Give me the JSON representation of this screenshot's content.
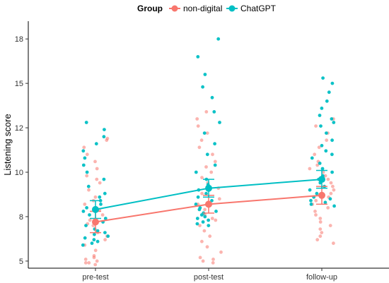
{
  "chart_data": {
    "type": "scatter",
    "title": "",
    "xlabel": "",
    "ylabel": "Listening score",
    "categories": [
      "pre-test",
      "post-test",
      "follow-up"
    ],
    "ylim": [
      4.6,
      18.5
    ],
    "yticks": [
      {
        "value": 5,
        "label": "5"
      },
      {
        "value": 7.5,
        "label": "8"
      },
      {
        "value": 10,
        "label": "10"
      },
      {
        "value": 12.5,
        "label": "12"
      },
      {
        "value": 15,
        "label": "15"
      },
      {
        "value": 17.5,
        "label": "18"
      }
    ],
    "grid": false,
    "legend": {
      "title": "Group",
      "position": "top"
    },
    "series": [
      {
        "name": "non-digital",
        "color": "#F8766D",
        "means": [
          7.2,
          8.2,
          8.7
        ],
        "ci_low": [
          6.6,
          7.7,
          8.2
        ],
        "ci_high": [
          7.8,
          8.7,
          9.2
        ],
        "points": [
          [
            4.8,
            5.0,
            5.1,
            4.9,
            5.3,
            5.6,
            5.9,
            6.2,
            6.6,
            7.0,
            7.3,
            7.6,
            7.9,
            8.2,
            8.6,
            9.0,
            9.4,
            9.8,
            10.2,
            10.6,
            11.0,
            11.4,
            11.8,
            11.9,
            4.9,
            5.2,
            6.4,
            7.1,
            8.4,
            9.6
          ],
          [
            4.9,
            5.0,
            5.2,
            5.5,
            5.8,
            6.1,
            6.4,
            6.7,
            7.0,
            7.3,
            7.6,
            7.9,
            8.2,
            8.5,
            8.8,
            9.1,
            9.4,
            9.7,
            10.0,
            10.3,
            10.6,
            11.0,
            11.4,
            11.8,
            12.2,
            12.6,
            13.0,
            13.4,
            5.1,
            7.4
          ],
          [
            6.0,
            6.2,
            6.4,
            6.6,
            6.8,
            7.0,
            7.2,
            7.4,
            7.6,
            7.8,
            8.0,
            8.2,
            8.4,
            8.6,
            8.8,
            9.0,
            9.2,
            9.4,
            9.6,
            9.8,
            10.0,
            10.2,
            10.4,
            10.6,
            11.0,
            11.4,
            11.8,
            12.2,
            12.6,
            13.0
          ]
        ]
      },
      {
        "name": "ChatGPT",
        "color": "#00BFC4",
        "means": [
          7.9,
          9.1,
          9.6
        ],
        "ci_low": [
          7.4,
          8.6,
          9.1
        ],
        "ci_high": [
          8.4,
          9.6,
          10.1
        ],
        "points": [
          [
            5.9,
            6.0,
            6.1,
            6.2,
            6.3,
            6.4,
            6.5,
            6.6,
            6.7,
            6.8,
            7.0,
            7.2,
            7.4,
            7.6,
            7.8,
            8.0,
            8.2,
            8.4,
            8.6,
            8.8,
            9.2,
            9.6,
            10.0,
            10.4,
            10.8,
            11.2,
            11.6,
            12.0,
            12.4,
            12.8
          ],
          [
            7.0,
            7.1,
            7.2,
            7.3,
            7.4,
            7.5,
            7.6,
            7.7,
            7.8,
            7.9,
            8.0,
            8.2,
            8.4,
            8.6,
            8.8,
            9.0,
            9.3,
            9.6,
            10.0,
            10.4,
            11.0,
            11.6,
            12.2,
            12.8,
            13.4,
            14.2,
            14.8,
            15.5,
            16.5,
            17.5
          ],
          [
            8.2,
            8.4,
            8.6,
            8.8,
            9.0,
            9.2,
            9.4,
            9.6,
            9.8,
            10.0,
            10.2,
            10.5,
            10.8,
            11.0,
            11.2,
            11.5,
            11.8,
            12.2,
            12.6,
            12.8,
            13.0,
            13.2,
            13.6,
            14.0,
            14.5,
            15.0,
            15.3,
            8.1,
            8.3,
            8.5
          ]
        ]
      }
    ]
  }
}
